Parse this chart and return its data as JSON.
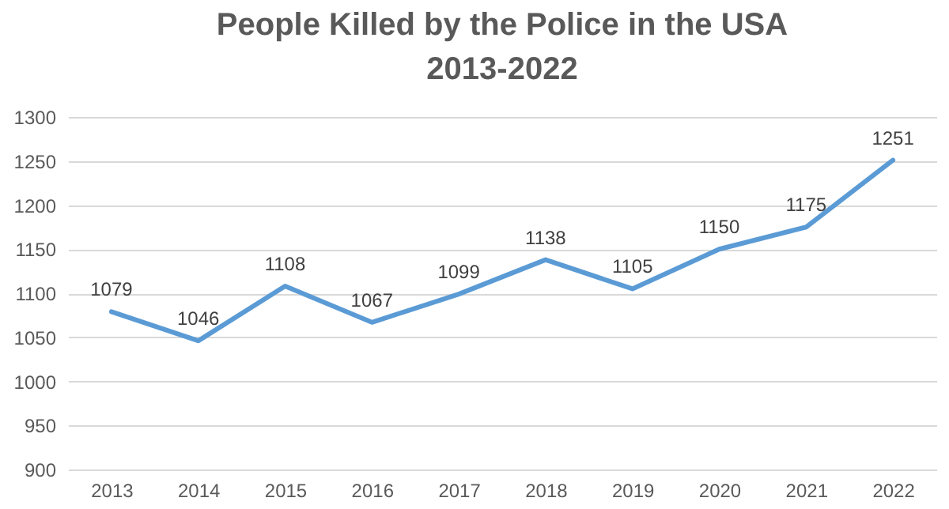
{
  "chart_data": {
    "type": "line",
    "title": "People Killed by the Police in the USA\n2013-2022",
    "categories": [
      "2013",
      "2014",
      "2015",
      "2016",
      "2017",
      "2018",
      "2019",
      "2020",
      "2021",
      "2022"
    ],
    "series": [
      {
        "color": "#5b9bd5",
        "values": [
          1079,
          1046,
          1108,
          1067,
          1099,
          1138,
          1105,
          1150,
          1175,
          1251
        ]
      }
    ],
    "ylim": [
      900,
      1300
    ],
    "yticks": [
      900,
      950,
      1000,
      1050,
      1100,
      1150,
      1200,
      1250,
      1300
    ],
    "grid": "y",
    "data_labels": true,
    "marker": "none",
    "line_style": "solid"
  }
}
